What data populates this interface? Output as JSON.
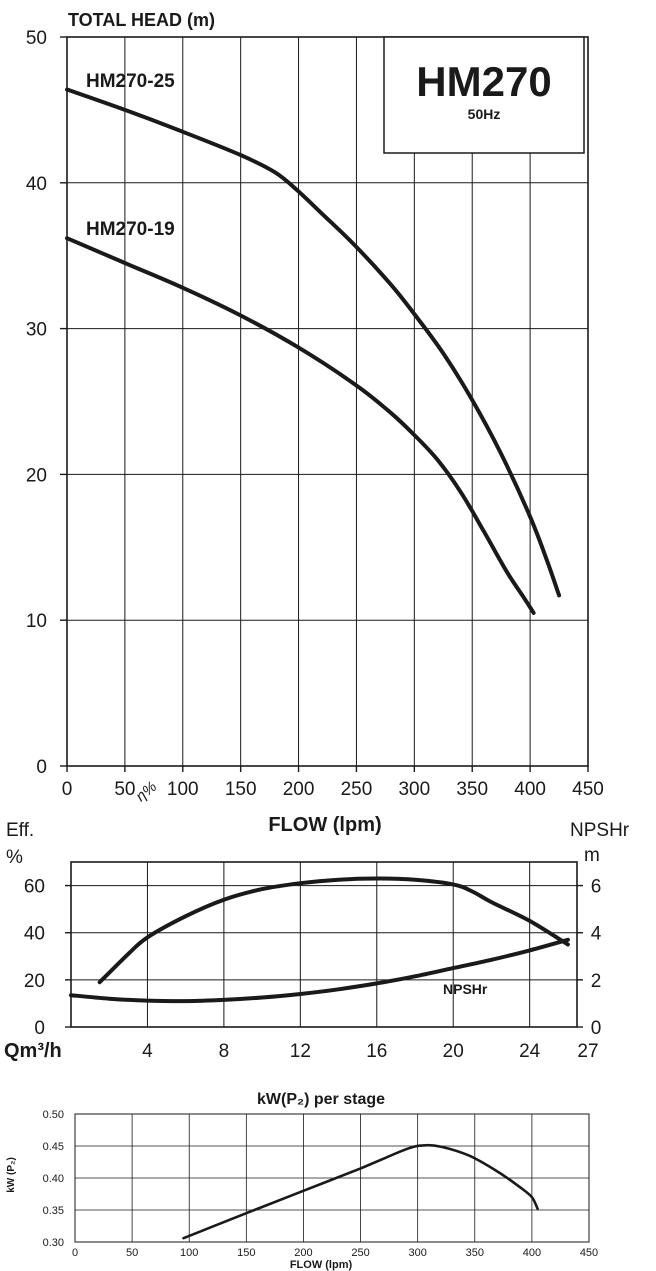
{
  "chart_data": [
    {
      "type": "line",
      "title": "",
      "ylabel": "TOTAL HEAD (m)",
      "xlabel": "FLOW (lpm)",
      "xlim": [
        0,
        450
      ],
      "ylim": [
        0,
        50
      ],
      "x_ticks": [
        "0",
        "50",
        "100",
        "150",
        "200",
        "250",
        "300",
        "350",
        "400",
        "450"
      ],
      "y_ticks": [
        "0",
        "10",
        "20",
        "30",
        "40",
        "50"
      ],
      "grid": true,
      "model_box": {
        "title": "HM270",
        "subtitle": "50Hz"
      },
      "series": [
        {
          "name": "HM270-25",
          "x": [
            0,
            50,
            100,
            150,
            180,
            200,
            220,
            250,
            280,
            300,
            325,
            350,
            375,
            400,
            415,
            425
          ],
          "y": [
            46.4,
            45.0,
            43.5,
            41.9,
            40.7,
            39.4,
            37.9,
            35.6,
            33.0,
            31.0,
            28.3,
            25.1,
            21.4,
            17.1,
            14.0,
            11.7
          ]
        },
        {
          "name": "HM270-19",
          "x": [
            0,
            50,
            100,
            150,
            200,
            250,
            280,
            300,
            320,
            340,
            360,
            380,
            395,
            403
          ],
          "y": [
            36.2,
            34.5,
            32.8,
            30.9,
            28.7,
            26.1,
            24.2,
            22.7,
            21.0,
            18.8,
            16.1,
            13.3,
            11.5,
            10.5
          ]
        }
      ]
    },
    {
      "type": "line",
      "title": "",
      "left_axis_label": "Eff.",
      "left_unit": "%",
      "right_axis_label": "NPSHr",
      "right_unit": "m",
      "x_axis_label": "Qm³/h",
      "x_ticks": [
        "4",
        "8",
        "12",
        "16",
        "20",
        "24",
        "27"
      ],
      "x_tick_values": [
        4,
        8,
        12,
        16,
        20,
        24,
        27
      ],
      "xlim": [
        0,
        27
      ],
      "y_left_ticks": [
        "0",
        "20",
        "40",
        "60"
      ],
      "y_right_ticks": [
        "0",
        "2",
        "4",
        "6"
      ],
      "ylim_left": [
        0,
        70
      ],
      "ylim_right": [
        0,
        7
      ],
      "grid": true,
      "series": [
        {
          "name": "η%",
          "axis": "left",
          "x": [
            1.5,
            3,
            4,
            6,
            8,
            10,
            12,
            14,
            16,
            18,
            20,
            21,
            22,
            24,
            26
          ],
          "y": [
            19,
            31,
            38,
            47,
            54,
            58.5,
            61,
            62.5,
            63,
            62.5,
            60.5,
            57.5,
            53,
            45,
            35
          ]
        },
        {
          "name": "NPSHr",
          "axis": "right",
          "x": [
            0,
            2,
            4,
            6,
            8,
            10,
            12,
            14,
            16,
            18,
            20,
            22,
            24,
            26
          ],
          "y": [
            1.35,
            1.2,
            1.12,
            1.1,
            1.15,
            1.25,
            1.4,
            1.6,
            1.85,
            2.15,
            2.5,
            2.85,
            3.25,
            3.7
          ]
        }
      ]
    },
    {
      "type": "line",
      "title": "kW(P₂) per stage",
      "ylabel": "kW (P₂)",
      "xlabel": "FLOW (lpm)",
      "xlim": [
        0,
        450
      ],
      "ylim": [
        0.3,
        0.5
      ],
      "x_ticks": [
        "0",
        "50",
        "100",
        "150",
        "200",
        "250",
        "300",
        "350",
        "400",
        "450"
      ],
      "y_ticks": [
        "0.30",
        "0.35",
        "0.40",
        "0.45",
        "0.50"
      ],
      "grid": true,
      "series": [
        {
          "name": "",
          "x": [
            95,
            150,
            200,
            250,
            290,
            305,
            320,
            345,
            370,
            390,
            400,
            405
          ],
          "y": [
            0.306,
            0.345,
            0.38,
            0.415,
            0.445,
            0.451,
            0.449,
            0.435,
            0.41,
            0.385,
            0.37,
            0.352
          ]
        }
      ]
    }
  ]
}
